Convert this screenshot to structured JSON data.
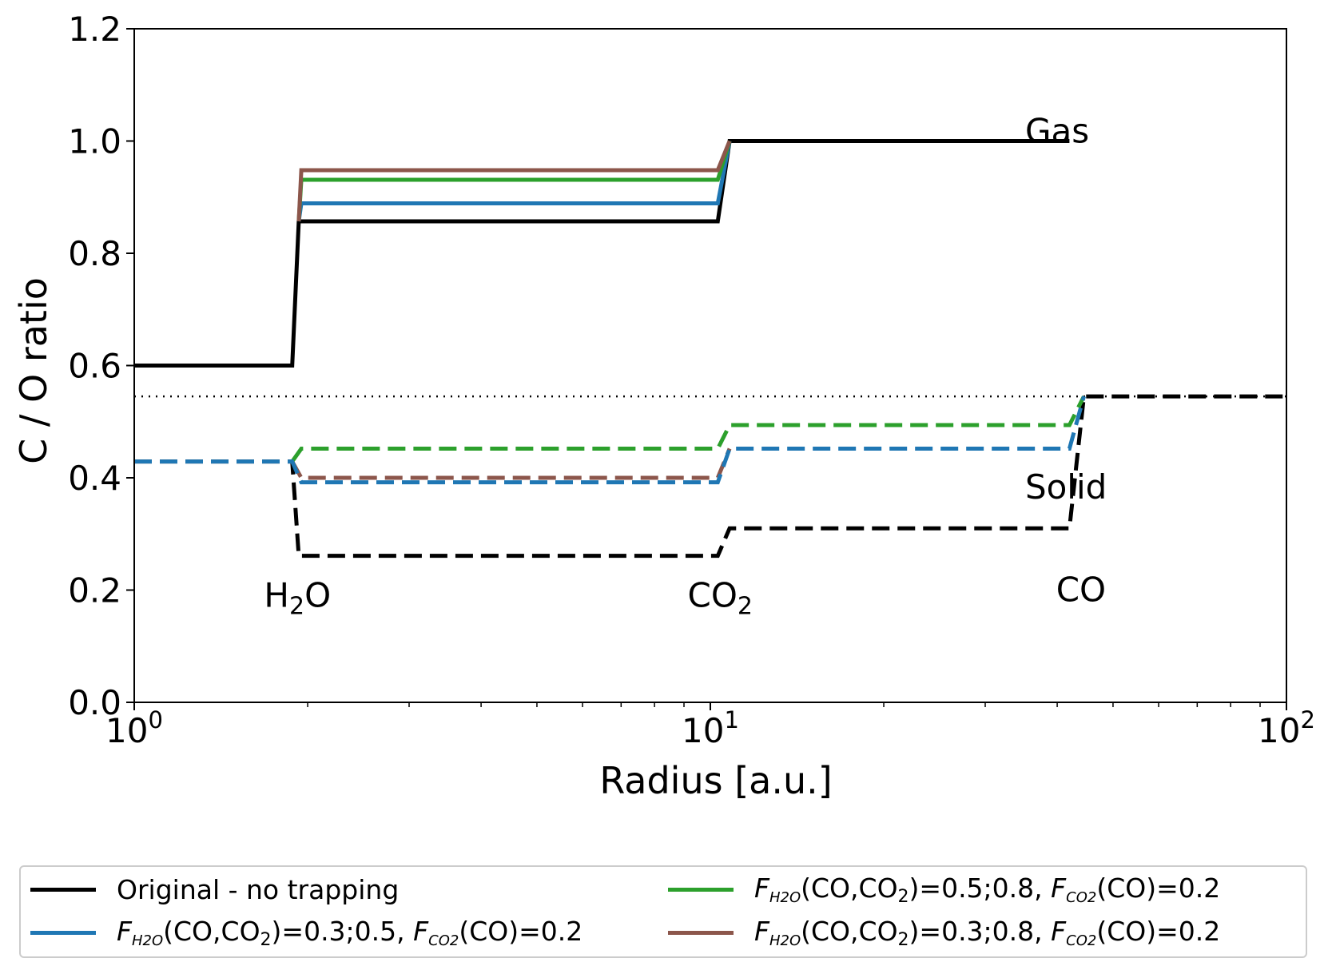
{
  "chart_data": {
    "type": "line",
    "xscale": "log",
    "xlim": [
      1,
      100
    ],
    "ylim": [
      0.0,
      1.2
    ],
    "xlabel": "Radius [a.u.]",
    "ylabel": "C / O ratio",
    "x_ticks": [
      {
        "value": 1,
        "base": "10",
        "exp": "0"
      },
      {
        "value": 10,
        "base": "10",
        "exp": "1"
      },
      {
        "value": 100,
        "base": "10",
        "exp": "2"
      }
    ],
    "y_ticks": [
      "0.0",
      "0.2",
      "0.4",
      "0.6",
      "0.8",
      "1.0",
      "1.2"
    ],
    "annotations": {
      "gas": {
        "text": "Gas",
        "x": 50,
        "y": 1.0
      },
      "solid": {
        "text": "Solid",
        "x": 50,
        "y": 0.4
      },
      "h2o": {
        "text": "H",
        "sub": "2",
        "tail": "O",
        "x": 1.92,
        "y": 0.17
      },
      "co2": {
        "text": "CO",
        "sub": "2",
        "tail": "",
        "x": 10.4,
        "y": 0.17
      },
      "co": {
        "text": "CO",
        "sub": "",
        "tail": "",
        "x": 44,
        "y": 0.18
      }
    },
    "reference_line": {
      "y": 0.545,
      "style": "dotted",
      "color": "#000000"
    },
    "series": [
      {
        "name": "Original - no trapping",
        "phase": "gas",
        "color": "#000000",
        "dash": "solid",
        "points": [
          [
            1,
            0.6
          ],
          [
            1.88,
            0.6
          ],
          [
            1.93,
            0.857
          ],
          [
            10.3,
            0.857
          ],
          [
            10.8,
            1.0
          ],
          [
            42,
            1.0
          ]
        ]
      },
      {
        "name": "F_H2O(CO,CO2)=0.3;0.5, F_CO2(CO)=0.2",
        "phase": "gas",
        "color": "#1f77b4",
        "dash": "solid",
        "points": [
          [
            1.93,
            0.857
          ],
          [
            1.95,
            0.889
          ],
          [
            10.3,
            0.889
          ],
          [
            10.8,
            1.0
          ]
        ]
      },
      {
        "name": "F_H2O(CO,CO2)=0.5;0.8, F_CO2(CO)=0.2",
        "phase": "gas",
        "color": "#2ca02c",
        "dash": "solid",
        "points": [
          [
            1.93,
            0.857
          ],
          [
            1.95,
            0.931
          ],
          [
            10.3,
            0.931
          ],
          [
            10.8,
            1.0
          ]
        ]
      },
      {
        "name": "F_H2O(CO,CO2)=0.3;0.8, F_CO2(CO)=0.2",
        "phase": "gas",
        "color": "#8c564b",
        "dash": "solid",
        "points": [
          [
            1.93,
            0.857
          ],
          [
            1.95,
            0.948
          ],
          [
            10.3,
            0.948
          ],
          [
            10.8,
            1.0
          ]
        ]
      },
      {
        "name": "Original - no trapping",
        "phase": "solid",
        "color": "#000000",
        "dash": "dashed",
        "points": [
          [
            1,
            0.429
          ],
          [
            1.88,
            0.429
          ],
          [
            1.93,
            0.261
          ],
          [
            10.3,
            0.261
          ],
          [
            10.8,
            0.31
          ],
          [
            42,
            0.31
          ],
          [
            44.5,
            0.545
          ],
          [
            100,
            0.545
          ]
        ]
      },
      {
        "name": "F_H2O(CO,CO2)=0.3;0.8, F_CO2(CO)=0.2",
        "phase": "solid",
        "color": "#8c564b",
        "dash": "dashed",
        "points": [
          [
            1.88,
            0.429
          ],
          [
            1.95,
            0.4
          ],
          [
            10.3,
            0.4
          ],
          [
            10.8,
            0.452
          ]
        ]
      },
      {
        "name": "F_H2O(CO,CO2)=0.5;0.8, F_CO2(CO)=0.2",
        "phase": "solid",
        "color": "#2ca02c",
        "dash": "dashed",
        "points": [
          [
            1.88,
            0.429
          ],
          [
            1.95,
            0.452
          ],
          [
            10.3,
            0.452
          ],
          [
            10.8,
            0.494
          ],
          [
            42,
            0.494
          ],
          [
            44.5,
            0.545
          ]
        ]
      },
      {
        "name": "F_H2O(CO,CO2)=0.3;0.5, F_CO2(CO)=0.2",
        "phase": "solid",
        "color": "#1f77b4",
        "dash": "dashed",
        "points": [
          [
            1,
            0.429
          ],
          [
            1.88,
            0.429
          ],
          [
            1.95,
            0.392
          ],
          [
            10.3,
            0.392
          ],
          [
            10.8,
            0.452
          ],
          [
            42,
            0.452
          ],
          [
            44.5,
            0.545
          ]
        ]
      }
    ]
  },
  "legend": {
    "items": [
      {
        "color": "#000000",
        "label": "Original - no trapping"
      },
      {
        "color": "#1f77b4",
        "f1": "F",
        "f1sub": "H2O",
        "mid": "(CO,CO",
        "midsub": "2",
        "vals": ")=0.3;0.5, ",
        "f2": "F",
        "f2sub": "CO2",
        "tail": "(CO)=0.2"
      },
      {
        "color": "#2ca02c",
        "f1": "F",
        "f1sub": "H2O",
        "mid": "(CO,CO",
        "midsub": "2",
        "vals": ")=0.5;0.8, ",
        "f2": "F",
        "f2sub": "CO2",
        "tail": "(CO)=0.2"
      },
      {
        "color": "#8c564b",
        "f1": "F",
        "f1sub": "H2O",
        "mid": "(CO,CO",
        "midsub": "2",
        "vals": ")=0.3;0.8, ",
        "f2": "F",
        "f2sub": "CO2",
        "tail": "(CO)=0.2"
      }
    ]
  }
}
